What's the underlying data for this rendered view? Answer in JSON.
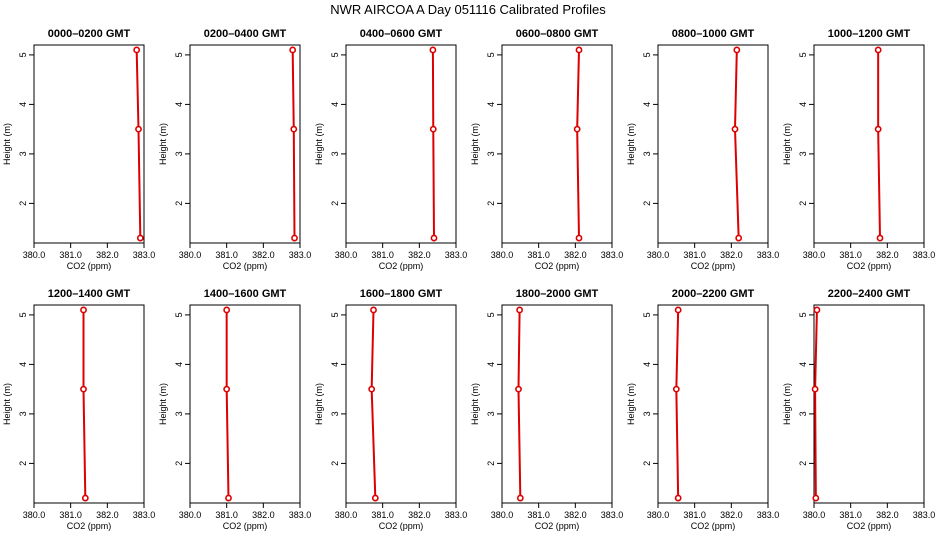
{
  "title": "NWR AIRCOA A  Day 051116  Calibrated Profiles",
  "colors": {
    "profile": "#dd0000",
    "axis": "#000000"
  },
  "chart_data": [
    {
      "type": "line",
      "title": "0000–0200 GMT",
      "xlabel": "CO2 (ppm)",
      "ylabel": "Height (m)",
      "xlim": [
        380,
        383
      ],
      "ylim": [
        1.2,
        5.2
      ],
      "xticks": [
        "380.0",
        "381.0",
        "382.0",
        "383.0"
      ],
      "yticks": [
        "2",
        "3",
        "4",
        "5"
      ],
      "series": [
        {
          "x": [
            382.9,
            382.85,
            382.8
          ],
          "y": [
            1.3,
            3.5,
            5.1
          ]
        }
      ]
    },
    {
      "type": "line",
      "title": "0200–0400 GMT",
      "xlabel": "CO2 (ppm)",
      "ylabel": "Height (m)",
      "xlim": [
        380,
        383
      ],
      "ylim": [
        1.2,
        5.2
      ],
      "xticks": [
        "380.0",
        "381.0",
        "382.0",
        "383.0"
      ],
      "yticks": [
        "2",
        "3",
        "4",
        "5"
      ],
      "series": [
        {
          "x": [
            382.85,
            382.83,
            382.8
          ],
          "y": [
            1.3,
            3.5,
            5.1
          ]
        }
      ]
    },
    {
      "type": "line",
      "title": "0400–0600 GMT",
      "xlabel": "CO2 (ppm)",
      "ylabel": "Height (m)",
      "xlim": [
        380,
        383
      ],
      "ylim": [
        1.2,
        5.2
      ],
      "xticks": [
        "380.0",
        "381.0",
        "382.0",
        "383.0"
      ],
      "yticks": [
        "2",
        "3",
        "4",
        "5"
      ],
      "series": [
        {
          "x": [
            382.4,
            382.38,
            382.37
          ],
          "y": [
            1.3,
            3.5,
            5.1
          ]
        }
      ]
    },
    {
      "type": "line",
      "title": "0600–0800 GMT",
      "xlabel": "CO2 (ppm)",
      "ylabel": "Height (m)",
      "xlim": [
        380,
        383
      ],
      "ylim": [
        1.2,
        5.2
      ],
      "xticks": [
        "380.0",
        "381.0",
        "382.0",
        "383.0"
      ],
      "yticks": [
        "2",
        "3",
        "4",
        "5"
      ],
      "series": [
        {
          "x": [
            382.1,
            382.05,
            382.1
          ],
          "y": [
            1.3,
            3.5,
            5.1
          ]
        }
      ]
    },
    {
      "type": "line",
      "title": "0800–1000 GMT",
      "xlabel": "CO2 (ppm)",
      "ylabel": "Height (m)",
      "xlim": [
        380,
        383
      ],
      "ylim": [
        1.2,
        5.2
      ],
      "xticks": [
        "380.0",
        "381.0",
        "382.0",
        "383.0"
      ],
      "yticks": [
        "2",
        "3",
        "4",
        "5"
      ],
      "series": [
        {
          "x": [
            382.2,
            382.1,
            382.15
          ],
          "y": [
            1.3,
            3.5,
            5.1
          ]
        }
      ]
    },
    {
      "type": "line",
      "title": "1000–1200 GMT",
      "xlabel": "CO2 (ppm)",
      "ylabel": "Height (m)",
      "xlim": [
        380,
        383
      ],
      "ylim": [
        1.2,
        5.2
      ],
      "xticks": [
        "380.0",
        "381.0",
        "382.0",
        "383.0"
      ],
      "yticks": [
        "2",
        "3",
        "4",
        "5"
      ],
      "series": [
        {
          "x": [
            381.8,
            381.75,
            381.75
          ],
          "y": [
            1.3,
            3.5,
            5.1
          ]
        }
      ]
    },
    {
      "type": "line",
      "title": "1200–1400 GMT",
      "xlabel": "CO2 (ppm)",
      "ylabel": "Height (m)",
      "xlim": [
        380,
        383
      ],
      "ylim": [
        1.2,
        5.2
      ],
      "xticks": [
        "380.0",
        "381.0",
        "382.0",
        "383.0"
      ],
      "yticks": [
        "2",
        "3",
        "4",
        "5"
      ],
      "series": [
        {
          "x": [
            381.4,
            381.35,
            381.35
          ],
          "y": [
            1.3,
            3.5,
            5.1
          ]
        }
      ]
    },
    {
      "type": "line",
      "title": "1400–1600 GMT",
      "xlabel": "CO2 (ppm)",
      "ylabel": "Height (m)",
      "xlim": [
        380,
        383
      ],
      "ylim": [
        1.2,
        5.2
      ],
      "xticks": [
        "380.0",
        "381.0",
        "382.0",
        "383.0"
      ],
      "yticks": [
        "2",
        "3",
        "4",
        "5"
      ],
      "series": [
        {
          "x": [
            381.05,
            381.0,
            381.0
          ],
          "y": [
            1.3,
            3.5,
            5.1
          ]
        }
      ]
    },
    {
      "type": "line",
      "title": "1600–1800 GMT",
      "xlabel": "CO2 (ppm)",
      "ylabel": "Height (m)",
      "xlim": [
        380,
        383
      ],
      "ylim": [
        1.2,
        5.2
      ],
      "xticks": [
        "380.0",
        "381.0",
        "382.0",
        "383.0"
      ],
      "yticks": [
        "2",
        "3",
        "4",
        "5"
      ],
      "series": [
        {
          "x": [
            380.8,
            380.7,
            380.75
          ],
          "y": [
            1.3,
            3.5,
            5.1
          ]
        }
      ]
    },
    {
      "type": "line",
      "title": "1800–2000 GMT",
      "xlabel": "CO2 (ppm)",
      "ylabel": "Height (m)",
      "xlim": [
        380,
        383
      ],
      "ylim": [
        1.2,
        5.2
      ],
      "xticks": [
        "380.0",
        "381.0",
        "382.0",
        "383.0"
      ],
      "yticks": [
        "2",
        "3",
        "4",
        "5"
      ],
      "series": [
        {
          "x": [
            380.5,
            380.45,
            380.48
          ],
          "y": [
            1.3,
            3.5,
            5.1
          ]
        }
      ]
    },
    {
      "type": "line",
      "title": "2000–2200 GMT",
      "xlabel": "CO2 (ppm)",
      "ylabel": "Height (m)",
      "xlim": [
        380,
        383
      ],
      "ylim": [
        1.2,
        5.2
      ],
      "xticks": [
        "380.0",
        "381.0",
        "382.0",
        "383.0"
      ],
      "yticks": [
        "2",
        "3",
        "4",
        "5"
      ],
      "series": [
        {
          "x": [
            380.55,
            380.5,
            380.55
          ],
          "y": [
            1.3,
            3.5,
            5.1
          ]
        }
      ]
    },
    {
      "type": "line",
      "title": "2200–2400 GMT",
      "xlabel": "CO2 (ppm)",
      "ylabel": "Height (m)",
      "xlim": [
        380,
        383
      ],
      "ylim": [
        1.2,
        5.2
      ],
      "xticks": [
        "380.0",
        "381.0",
        "382.0",
        "383.0"
      ],
      "yticks": [
        "2",
        "3",
        "4",
        "5"
      ],
      "series": [
        {
          "x": [
            380.05,
            380.03,
            380.08
          ],
          "y": [
            1.3,
            3.5,
            5.1
          ]
        }
      ]
    }
  ]
}
